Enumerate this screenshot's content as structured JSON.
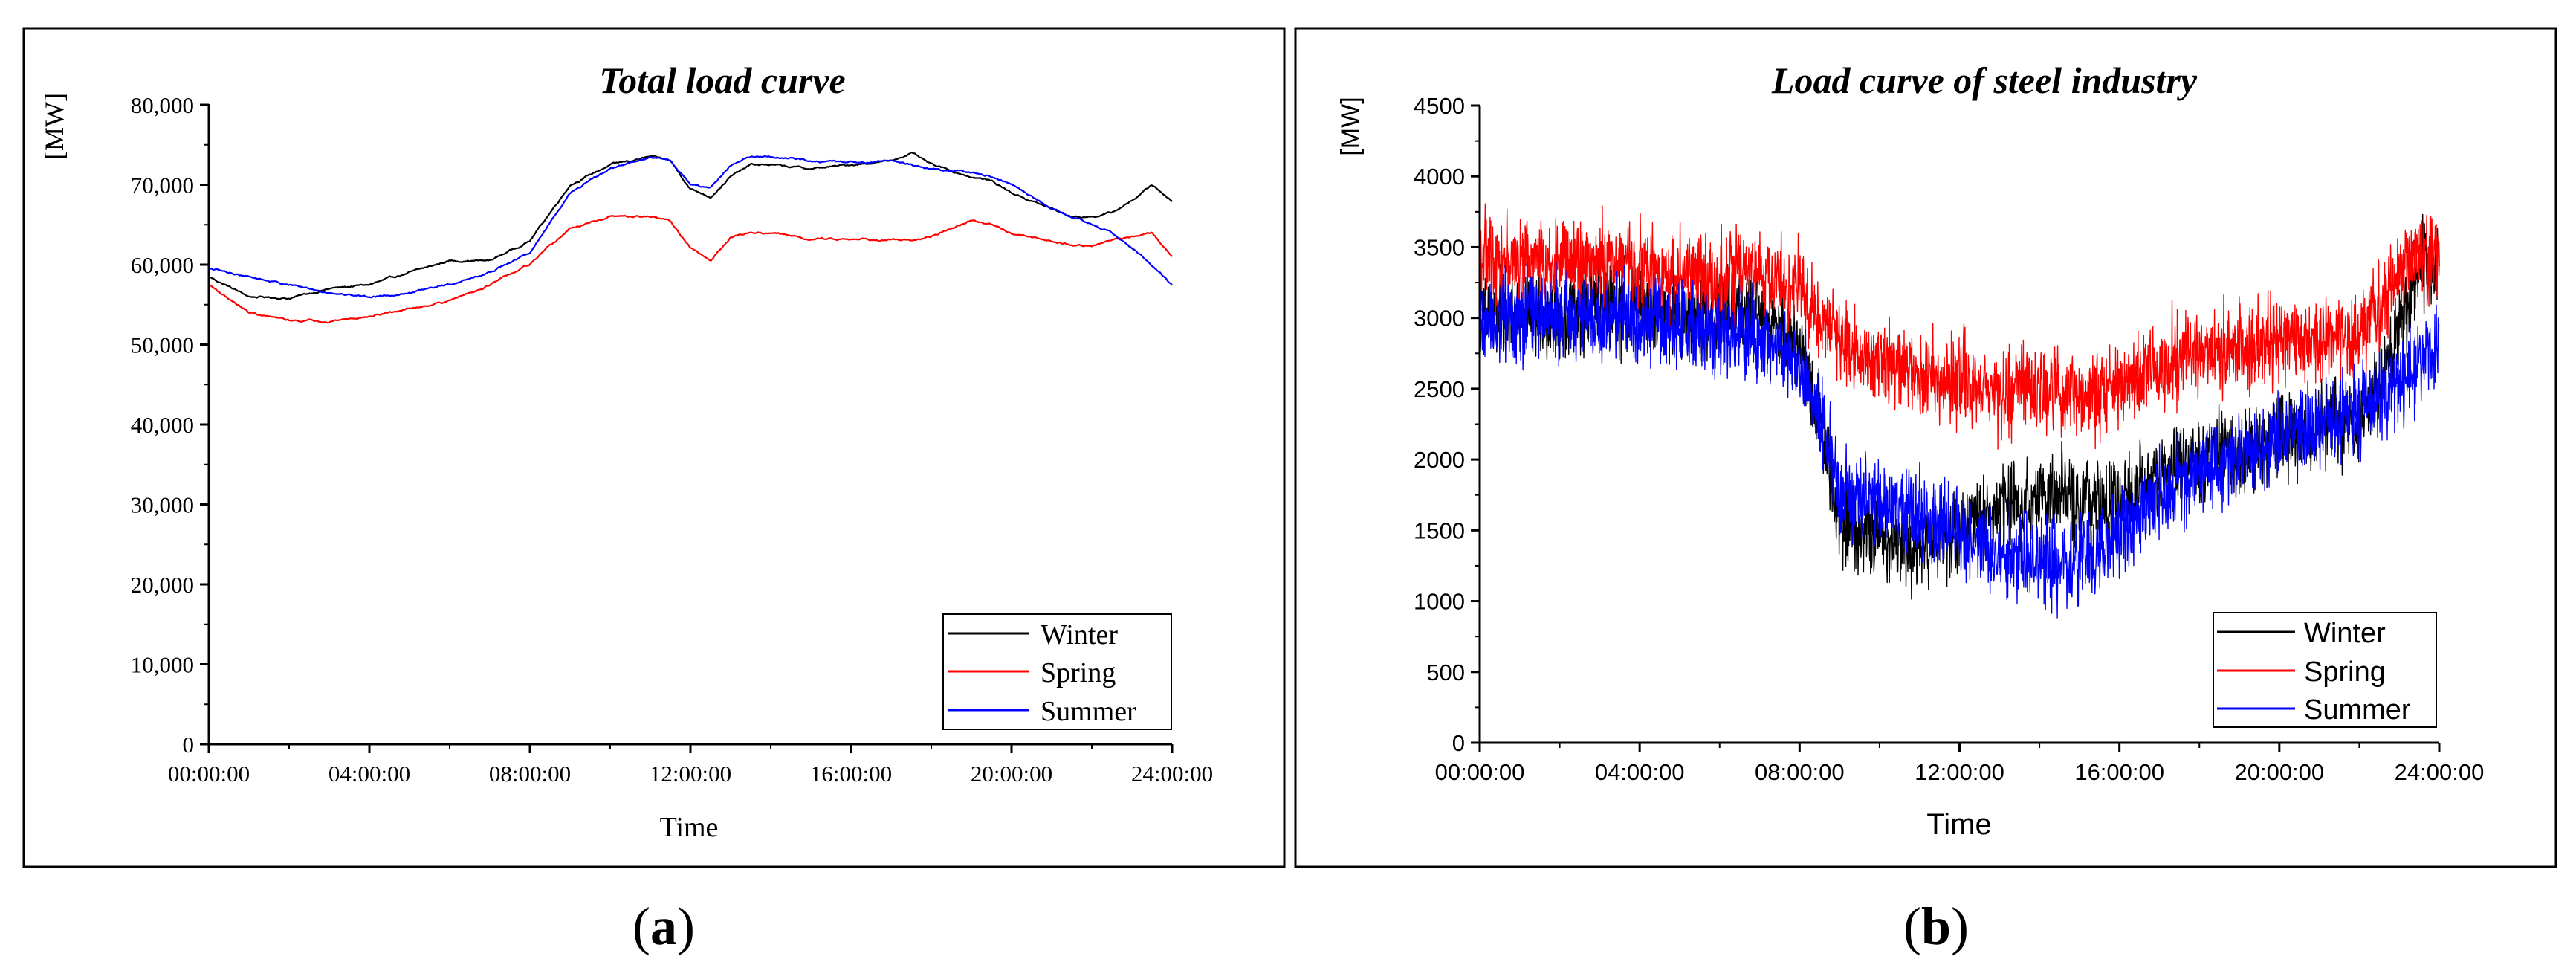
{
  "chart_data": [
    {
      "panel_label": "(a)",
      "type": "line",
      "title": "Total load curve",
      "xlabel": "Time",
      "ylabel": "[MW]",
      "xlim": [
        0,
        24
      ],
      "ylim": [
        0,
        80000
      ],
      "x_tick_labels": [
        "00:00:00",
        "04:00:00",
        "08:00:00",
        "12:00:00",
        "16:00:00",
        "20:00:00",
        "24:00:00"
      ],
      "y_ticks": [
        0,
        10000,
        20000,
        30000,
        40000,
        50000,
        60000,
        70000,
        80000
      ],
      "y_tick_labels": [
        "0",
        "10,000",
        "20,000",
        "30,000",
        "40,000",
        "50,000",
        "60,000",
        "70,000",
        "80,000"
      ],
      "legend_position": "bottom-right",
      "x": [
        0,
        1,
        2,
        3,
        4,
        5,
        6,
        7,
        8,
        9,
        10,
        11,
        11.5,
        12,
        12.5,
        13,
        13.5,
        14,
        15,
        16,
        17,
        17.5,
        18,
        19,
        19.5,
        20,
        21,
        21.5,
        22,
        22.5,
        23,
        23.5,
        24
      ],
      "series": [
        {
          "name": "Winter",
          "color": "#000000",
          "noise": 250,
          "values": [
            58500,
            56000,
            55800,
            57000,
            57500,
            59000,
            60500,
            60500,
            63000,
            70000,
            72500,
            73500,
            73000,
            69500,
            68500,
            71000,
            72500,
            72500,
            72000,
            72500,
            73000,
            74000,
            72500,
            71000,
            70500,
            69000,
            67000,
            66000,
            66000,
            66500,
            68000,
            70000,
            68000
          ]
        },
        {
          "name": "Spring",
          "color": "#ff0000",
          "noise": 250,
          "values": [
            57500,
            54000,
            53000,
            53000,
            53500,
            54500,
            55500,
            57500,
            60000,
            64500,
            66000,
            66000,
            65500,
            62000,
            60500,
            63500,
            64000,
            64000,
            63200,
            63300,
            63000,
            63000,
            63500,
            65500,
            65000,
            64000,
            63000,
            62500,
            62500,
            63000,
            63500,
            64000,
            61000
          ]
        },
        {
          "name": "Summer",
          "color": "#0000ff",
          "noise": 250,
          "values": [
            59500,
            58500,
            57500,
            56500,
            56000,
            56500,
            57500,
            59000,
            61500,
            69000,
            72000,
            73500,
            73000,
            70000,
            69500,
            72500,
            73500,
            73500,
            73000,
            72800,
            73000,
            72500,
            72000,
            71500,
            71000,
            70000,
            67000,
            66000,
            65000,
            64000,
            62000,
            60000,
            57500
          ]
        }
      ]
    },
    {
      "panel_label": "(b)",
      "type": "line",
      "title": "Load curve of steel industry",
      "xlabel": "Time",
      "ylabel": "[MW]",
      "xlim": [
        0,
        24
      ],
      "ylim": [
        0,
        4500
      ],
      "x_tick_labels": [
        "00:00:00",
        "04:00:00",
        "08:00:00",
        "12:00:00",
        "16:00:00",
        "20:00:00",
        "24:00:00"
      ],
      "y_ticks": [
        0,
        500,
        1000,
        1500,
        2000,
        2500,
        3000,
        3500,
        4000,
        4500
      ],
      "y_tick_labels": [
        "0",
        "500",
        "1000",
        "1500",
        "2000",
        "2500",
        "3000",
        "3500",
        "4000",
        "4500"
      ],
      "legend_position": "bottom-right",
      "x": [
        0,
        1,
        2,
        3,
        4,
        5,
        6,
        7,
        8,
        8.5,
        9,
        10,
        11,
        12,
        13,
        14,
        15,
        16,
        17,
        18,
        19,
        20,
        21,
        22,
        22.5,
        23,
        23.5,
        24
      ],
      "series": [
        {
          "name": "Winter",
          "color": "#000000",
          "noise": 300,
          "values": [
            3000,
            3000,
            3000,
            3100,
            3050,
            3000,
            3000,
            3050,
            2800,
            2300,
            1600,
            1450,
            1400,
            1500,
            1650,
            1750,
            1700,
            1650,
            1900,
            2000,
            2050,
            2150,
            2200,
            2300,
            2500,
            2900,
            3400,
            3300
          ]
        },
        {
          "name": "Spring",
          "color": "#ff0000",
          "noise": 300,
          "values": [
            3450,
            3400,
            3400,
            3400,
            3350,
            3300,
            3300,
            3300,
            3200,
            3000,
            2850,
            2700,
            2600,
            2550,
            2500,
            2500,
            2450,
            2500,
            2650,
            2750,
            2800,
            2850,
            2850,
            2900,
            3100,
            3300,
            3500,
            3400
          ]
        },
        {
          "name": "Summer",
          "color": "#0000ff",
          "noise": 300,
          "values": [
            3000,
            3050,
            3000,
            3000,
            3000,
            2950,
            2900,
            2850,
            2700,
            2300,
            1800,
            1700,
            1600,
            1500,
            1350,
            1300,
            1250,
            1450,
            1750,
            1900,
            2000,
            2150,
            2250,
            2350,
            2450,
            2500,
            2700,
            2800
          ]
        }
      ]
    }
  ]
}
